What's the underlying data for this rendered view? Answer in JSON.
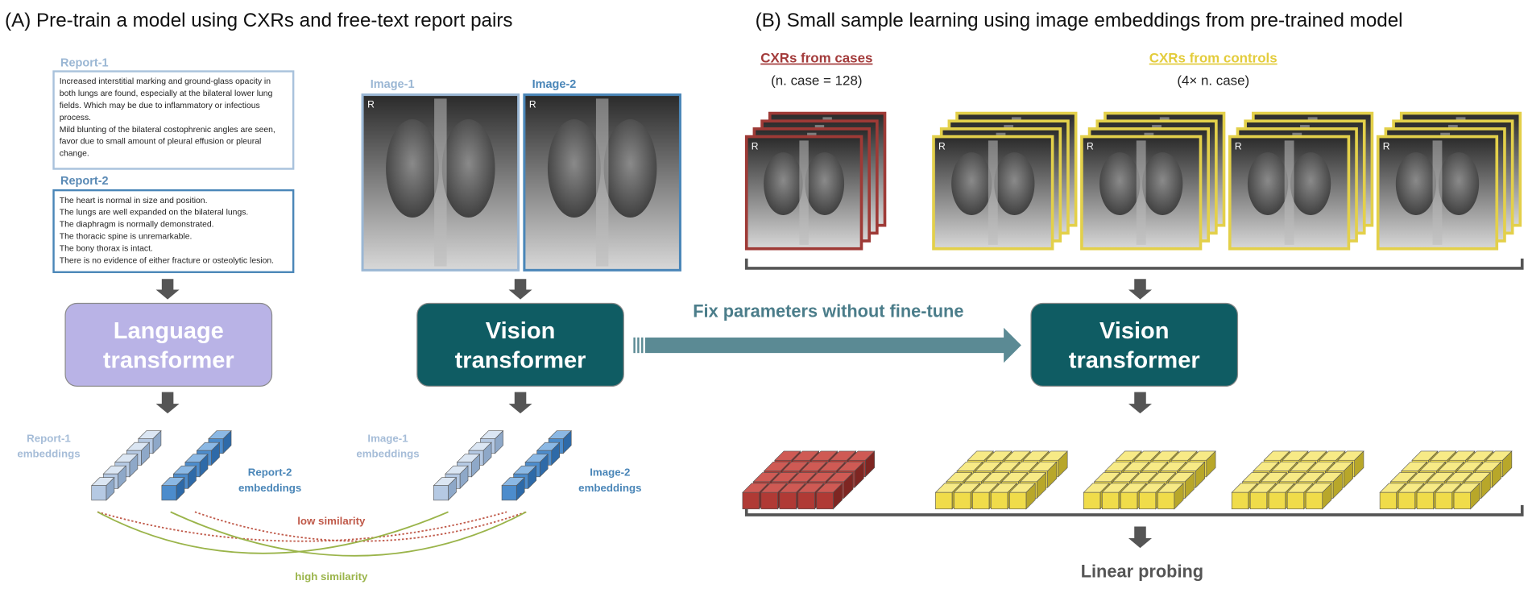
{
  "panel_a": {
    "title": "(A) Pre-train a model using CXRs and free-text report pairs",
    "reports": [
      {
        "label": "Report-1",
        "lines": [
          "Increased interstitial marking and ground-glass opacity in",
          "both lungs are found, especially at the bilateral lower lung",
          "fields. Which may be due to inflammatory or infectious",
          "process.",
          "Mild blunting of the bilateral costophrenic angles are seen,",
          "favor due to small amount of pleural effusion or pleural",
          "change."
        ]
      },
      {
        "label": "Report-2",
        "lines": [
          "The heart is normal in size and position.",
          "The lungs are well expanded on the bilateral lungs.",
          "The diaphragm is normally demonstrated.",
          "The thoracic spine is unremarkable.",
          "The bony thorax is intact.",
          "There is no evidence of either fracture or osteolytic lesion."
        ]
      }
    ],
    "images": [
      "Image-1",
      "Image-2"
    ],
    "image_marker": "R",
    "language_model": [
      "Language",
      "transformer"
    ],
    "vision_model": [
      "Vision",
      "transformer"
    ],
    "embeddings": [
      [
        "Report-1",
        "embeddings"
      ],
      [
        "Report-2",
        "embeddings"
      ],
      [
        "Image-1",
        "embeddings"
      ],
      [
        "Image-2",
        "embeddings"
      ]
    ],
    "low_similarity": "low similarity",
    "high_similarity": "high similarity"
  },
  "connector": "Fix parameters without fine-tune",
  "panel_b": {
    "title": "(B) Small sample learning using image embeddings from pre-trained model",
    "cases": {
      "label": "CXRs from cases",
      "note": "(n. case = 128)"
    },
    "controls": {
      "label": "CXRs from controls",
      "note": "(4× n. case)"
    },
    "vision_model": [
      "Vision",
      "transformer"
    ],
    "output": "Linear probing"
  }
}
